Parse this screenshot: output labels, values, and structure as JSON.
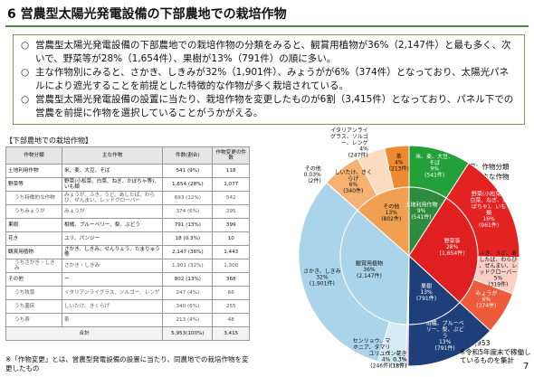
{
  "header": {
    "title": "6 営農型太陽光発電設備の下部農地での栽培作物"
  },
  "bullets": [
    "営農型太陽光発電設備の下部農地での栽培作物の分類をみると、観賞用植物が36%（2,147件）と最も多く、次いで、野菜等が28%（1,654件）、果樹が13%（791件）の順に多い。",
    "主な作物別にみると、さかき、しきみが32%（1,901件）、みょうがが6%（374件）となっており、太陽光パネルにより遮光することを前提とした特徴的な作物が多く栽培されている。",
    "営農型太陽光発電設備の設置に当たり、栽培作物を変更したものが6割（3,415件）となっており、パネル下での営農を前提に作物を選択していることがうかがえる。"
  ],
  "table": {
    "caption": "【下部農地での栽培作物】",
    "header": [
      "作物分類",
      "主な作物",
      "件数(割合)",
      "作物変更の件数"
    ],
    "rows": [
      [
        "土地利用作物",
        "米、麦、大豆、そば",
        "541 (9%)",
        "118"
      ],
      [
        "野菜等",
        "野菜(小松菜、白菜、ねぎ、かぼちゃ等)、いも類",
        "1,654 (28%)",
        "1,077"
      ],
      [
        "うち特徴的な作物",
        "みょうが、ふき、うど、あしたば、わらび、ぜんまい、レッドクローバー",
        "693 (12%)",
        "542"
      ],
      [
        "うちみょうが",
        "みょうが",
        "374 (6%)",
        "295"
      ],
      [
        "果樹",
        "柑橘、ブルーベリー、梨、ぶどう",
        "791 (13%)",
        "399"
      ],
      [
        "花き",
        "ユリ、パンジー",
        "18 (0.3%)",
        "10"
      ],
      [
        "観賞用植物",
        "さかき、しきみ、せんりょう、たまりゅう等",
        "2,147 (36%)",
        "1,443"
      ],
      [
        "うちさかき・しきみ",
        "さかき・しきみ",
        "1,901 (32%)",
        "1,300"
      ],
      [
        "その他",
        "ー",
        "802 (13%)",
        "368"
      ],
      [
        "うち牧草",
        "イタリアンライグラス、ソルゴー、レンゲ",
        "247 (4%)",
        "66"
      ],
      [
        "うち菌床",
        "しいたけ、きくらげ",
        "340 (6%)",
        "255"
      ],
      [
        "うち茶",
        "茶",
        "213 (4%)",
        "48"
      ],
      [
        "合計",
        "5,953(100%)",
        "3,415"
      ]
    ],
    "footnote": "※「作物変更」とは、営農型発電設備の設置に当たり、同農地での栽培作物を変更したもの"
  },
  "chart_data": {
    "type": "sunburst",
    "legend_inner": "内円：作物分類",
    "legend_outer": "外円：主な作物",
    "note_n": "N=5,953",
    "note": "※令和5年度末で稼働しているものを集計",
    "inner": {
      "categories": [
        "土地利用作物",
        "野菜等",
        "果樹",
        "花き",
        "観賞用植物",
        "その他"
      ],
      "values": [
        541,
        1654,
        791,
        18,
        2147,
        802
      ],
      "percent_labels": [
        "9%",
        "28%",
        "13%",
        "0.3%",
        "36%",
        "13%"
      ],
      "value_labels": [
        "(541件)",
        "(1,654件)",
        "(791件)",
        "(18件)",
        "(2,147件)",
        "(802件)"
      ],
      "colors": [
        "#2e8b3e",
        "#e02020",
        "#1f3f7a",
        "#f4a6c0",
        "#a9d4ea",
        "#f0a050"
      ]
    },
    "outer": {
      "categories": [
        "米、麦、大豆、そば",
        "野菜(小松菜、白菜、ねぎ、かぼちゃ)、いも類",
        "ふき、うど、あしたば、わらび、ぜんまい、レッドクローバー",
        "みょうが",
        "柑橘、ブルーベリー、梨、ぶどう",
        "ユリ、パンジー",
        "センリョウ、マホニア、タマリュウ",
        "さかき、しきみ",
        "その他",
        "しいたけ、きくらげ",
        "イタリアンライグラス、ソルゴー、レンゲ",
        "茶"
      ],
      "values": [
        541,
        961,
        319,
        374,
        791,
        18,
        246,
        1901,
        2,
        340,
        247,
        213
      ],
      "percent_labels": [
        "9%",
        "16%",
        "5%",
        "6%",
        "13%",
        "0.3%",
        "4%",
        "32%",
        "0.03%",
        "6%",
        "4%",
        "4%"
      ],
      "value_labels": [
        "(541件)",
        "(961件)",
        "(319件)",
        "(374件)",
        "(791件)",
        "(18件)",
        "(246件)",
        "(1,901件)",
        "(2件)",
        "(340件)",
        "(247件)",
        "(213件)"
      ],
      "colors": [
        "#23a03a",
        "#e32222",
        "#f9cfc6",
        "#ee5a3a",
        "#1f3f7a",
        "#f4a6c0",
        "#d4ebf6",
        "#a9d4ea",
        "#fde9d6",
        "#f5b273",
        "#fbdcbe",
        "#ef8a30"
      ]
    }
  },
  "page_number": "7"
}
